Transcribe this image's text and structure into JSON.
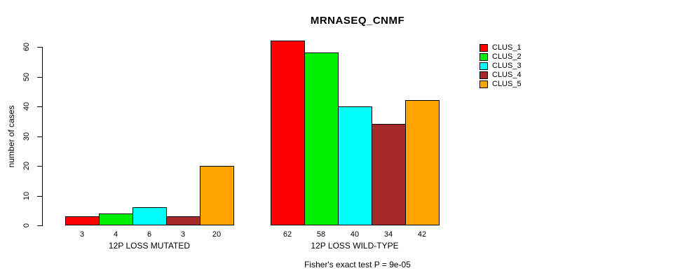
{
  "chart_data": {
    "type": "bar",
    "title": "MRNASEQ_CNMF",
    "xlabel": "",
    "ylabel": "number of cases",
    "ylim": [
      0,
      62
    ],
    "y_ticks": [
      0,
      10,
      20,
      30,
      40,
      50,
      60
    ],
    "grid": false,
    "legend_position": "right",
    "categories": [
      "12P LOSS MUTATED",
      "12P LOSS WILD-TYPE"
    ],
    "series": [
      {
        "name": "CLUS_1",
        "color": "#ff0000",
        "values": [
          3,
          62
        ]
      },
      {
        "name": "CLUS_2",
        "color": "#00ee00",
        "values": [
          4,
          58
        ]
      },
      {
        "name": "CLUS_3",
        "color": "#00ffff",
        "values": [
          6,
          40
        ]
      },
      {
        "name": "CLUS_4",
        "color": "#a52a2a",
        "values": [
          3,
          34
        ]
      },
      {
        "name": "CLUS_5",
        "color": "#ffa500",
        "values": [
          20,
          42
        ]
      }
    ],
    "groups": [
      {
        "label": "12P LOSS MUTATED",
        "values": [
          3,
          4,
          6,
          3,
          20
        ]
      },
      {
        "label": "12P LOSS WILD-TYPE",
        "values": [
          62,
          58,
          40,
          34,
          42
        ]
      }
    ],
    "bar_value_labels": [
      [
        3,
        4,
        6,
        3,
        20
      ],
      [
        62,
        58,
        40,
        34,
        42
      ]
    ],
    "annotation": "Fisher's exact test P = 9e-05"
  },
  "legend": {
    "entries": [
      {
        "label": "CLUS_1",
        "color": "#ff0000"
      },
      {
        "label": "CLUS_2",
        "color": "#00ee00"
      },
      {
        "label": "CLUS_3",
        "color": "#00ffff"
      },
      {
        "label": "CLUS_4",
        "color": "#a52a2a"
      },
      {
        "label": "CLUS_5",
        "color": "#ffa500"
      }
    ]
  },
  "colors": {
    "background": "#ffffff",
    "axis": "#000000",
    "text": "#000000"
  }
}
